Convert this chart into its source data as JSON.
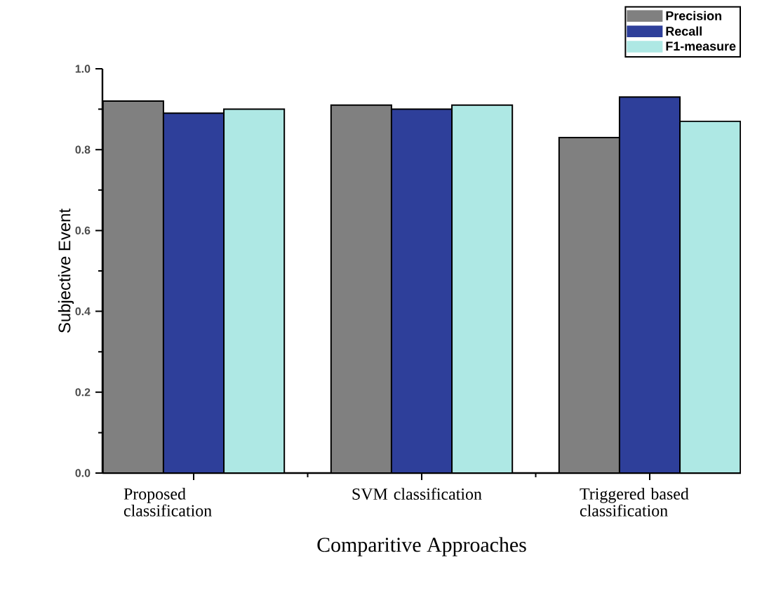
{
  "chart_data": {
    "type": "bar",
    "xlabel": "Comparitive Approaches",
    "ylabel": "Subjective Event",
    "categories": [
      "Proposed classification",
      "SVM classification",
      "Triggered based classification"
    ],
    "series": [
      {
        "name": "Precision",
        "color": "#808080",
        "values": [
          0.92,
          0.91,
          0.83
        ]
      },
      {
        "name": "Recall",
        "color": "#2e3f9a",
        "values": [
          0.89,
          0.9,
          0.93
        ]
      },
      {
        "name": "F1-measure",
        "color": "#aee8e4",
        "values": [
          0.9,
          0.91,
          0.87
        ]
      }
    ],
    "ylim": [
      0,
      1.0
    ],
    "yticks": [
      {
        "value": 0,
        "label": "0.0"
      },
      {
        "value": 0.2,
        "label": "0.2"
      },
      {
        "value": 0.4,
        "label": "0.4"
      },
      {
        "value": 0.6,
        "label": "0.6"
      },
      {
        "value": 0.8,
        "label": "0.8"
      },
      {
        "value": 1.0,
        "label": "1.0"
      }
    ],
    "grid": false,
    "legend": "top right"
  }
}
